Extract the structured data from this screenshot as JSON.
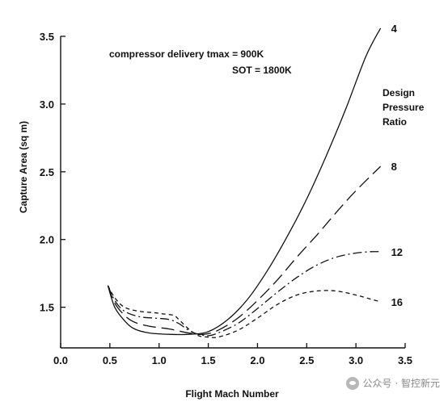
{
  "chart_data": {
    "type": "line",
    "xlabel": "Flight Mach Number",
    "ylabel": "Capture Area (sq m)",
    "xlim": [
      0.0,
      3.5
    ],
    "ylim": [
      1.2,
      3.5
    ],
    "xticks": [
      "0.0",
      "0.5",
      "1.0",
      "1.5",
      "2.0",
      "2.5",
      "3.0",
      "3.5"
    ],
    "yticks": [
      "1.5",
      "2.0",
      "2.5",
      "3.0",
      "3.5"
    ],
    "annotations": [
      "compressor delivery tmax = 900K",
      "SOT = 1800K"
    ],
    "legend_title": [
      "Design",
      "Pressure",
      "Ratio"
    ],
    "grid": false,
    "series": [
      {
        "name": "4",
        "style": "solid",
        "x": [
          0.48,
          0.55,
          0.65,
          0.75,
          0.9,
          1.1,
          1.3,
          1.5,
          1.7,
          1.9,
          2.1,
          2.3,
          2.5,
          2.7,
          2.9,
          3.1,
          3.25
        ],
        "y": [
          1.66,
          1.5,
          1.4,
          1.34,
          1.31,
          1.3,
          1.3,
          1.32,
          1.41,
          1.56,
          1.77,
          2.02,
          2.3,
          2.62,
          2.97,
          3.35,
          3.56
        ]
      },
      {
        "name": "8",
        "style": "long-dash",
        "x": [
          0.48,
          0.55,
          0.65,
          0.75,
          0.9,
          1.1,
          1.3,
          1.45,
          1.6,
          1.8,
          2.0,
          2.2,
          2.4,
          2.6,
          2.8,
          3.0,
          3.25
        ],
        "y": [
          1.66,
          1.53,
          1.44,
          1.39,
          1.36,
          1.34,
          1.31,
          1.3,
          1.33,
          1.42,
          1.55,
          1.7,
          1.87,
          2.03,
          2.2,
          2.36,
          2.54
        ]
      },
      {
        "name": "12",
        "style": "dash-dot",
        "x": [
          0.48,
          0.55,
          0.65,
          0.8,
          0.95,
          1.1,
          1.2,
          1.3,
          1.4,
          1.5,
          1.6,
          1.8,
          2.0,
          2.2,
          2.4,
          2.6,
          2.8,
          3.0,
          3.15,
          3.25
        ],
        "y": [
          1.66,
          1.55,
          1.47,
          1.43,
          1.42,
          1.41,
          1.38,
          1.33,
          1.3,
          1.29,
          1.31,
          1.38,
          1.49,
          1.61,
          1.72,
          1.81,
          1.87,
          1.9,
          1.91,
          1.91
        ]
      },
      {
        "name": "16",
        "style": "short-dash",
        "x": [
          0.48,
          0.55,
          0.65,
          0.8,
          0.95,
          1.05,
          1.15,
          1.2,
          1.3,
          1.4,
          1.5,
          1.6,
          1.8,
          2.0,
          2.2,
          2.4,
          2.6,
          2.8,
          3.0,
          3.15,
          3.25
        ],
        "y": [
          1.66,
          1.57,
          1.5,
          1.47,
          1.46,
          1.45,
          1.44,
          1.41,
          1.34,
          1.29,
          1.28,
          1.28,
          1.33,
          1.42,
          1.52,
          1.59,
          1.62,
          1.62,
          1.59,
          1.56,
          1.54
        ]
      }
    ]
  },
  "watermark": {
    "text": "公众号 · 智控新元",
    "icon": "wechat-icon"
  }
}
